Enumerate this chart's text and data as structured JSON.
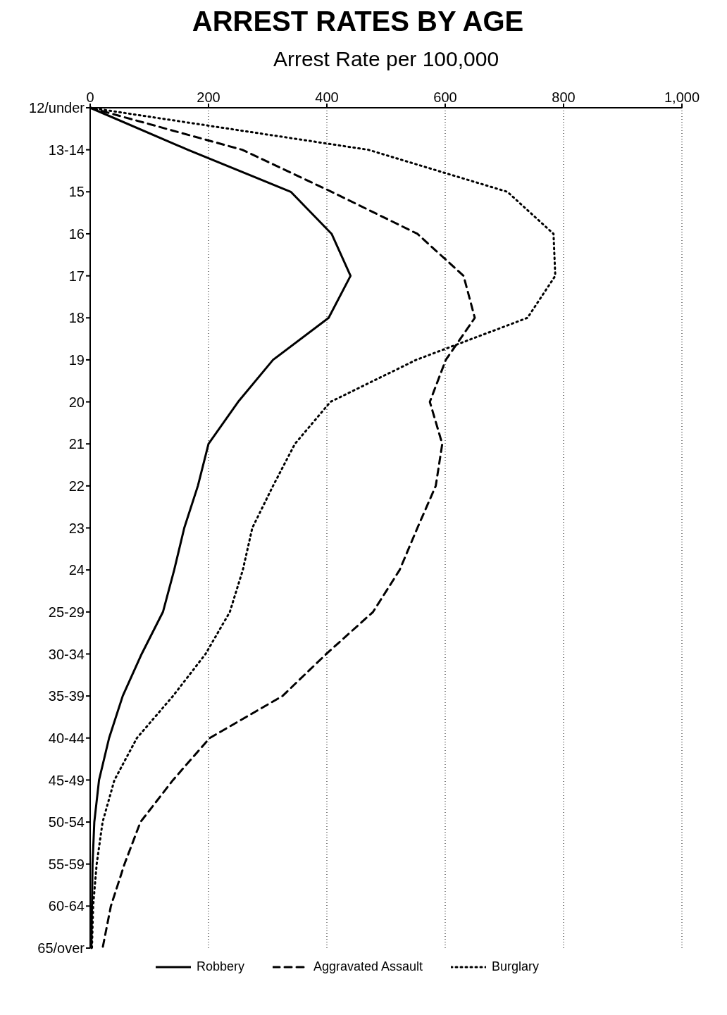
{
  "chart_data": {
    "type": "line",
    "title": "ARREST RATES BY AGE",
    "xlabel": "Arrest Rate per 100,000",
    "orientation": "horizontal",
    "categories": [
      "12/under",
      "13-14",
      "15",
      "16",
      "17",
      "18",
      "19",
      "20",
      "21",
      "22",
      "23",
      "24",
      "25-29",
      "30-34",
      "35-39",
      "40-44",
      "45-49",
      "50-54",
      "55-59",
      "60-64",
      "65/over"
    ],
    "series": [
      {
        "name": "Robbery",
        "color": "#000000",
        "line_style": "solid",
        "values": [
          0,
          165,
          339,
          408,
          440,
          403,
          309,
          250,
          200,
          182,
          159,
          142,
          123,
          87,
          55,
          32,
          15,
          7,
          4,
          3,
          2
        ]
      },
      {
        "name": "Aggravated Assault",
        "color": "#000000",
        "line_style": "dashed",
        "values": [
          0,
          257,
          408,
          553,
          631,
          650,
          601,
          574,
          595,
          584,
          553,
          523,
          478,
          399,
          325,
          202,
          140,
          85,
          58,
          35,
          21
        ]
      },
      {
        "name": "Burglary",
        "color": "#000000",
        "line_style": "dotted",
        "values": [
          0,
          470,
          705,
          783,
          786,
          739,
          551,
          406,
          346,
          309,
          274,
          258,
          236,
          195,
          140,
          79,
          41,
          21,
          11,
          5,
          3
        ]
      }
    ],
    "xlim": [
      0,
      1000
    ],
    "xticks": [
      0,
      200,
      400,
      600,
      800,
      {
        "value": 1000,
        "label": "1,000"
      }
    ],
    "grid": "x",
    "legend": "bottom"
  }
}
